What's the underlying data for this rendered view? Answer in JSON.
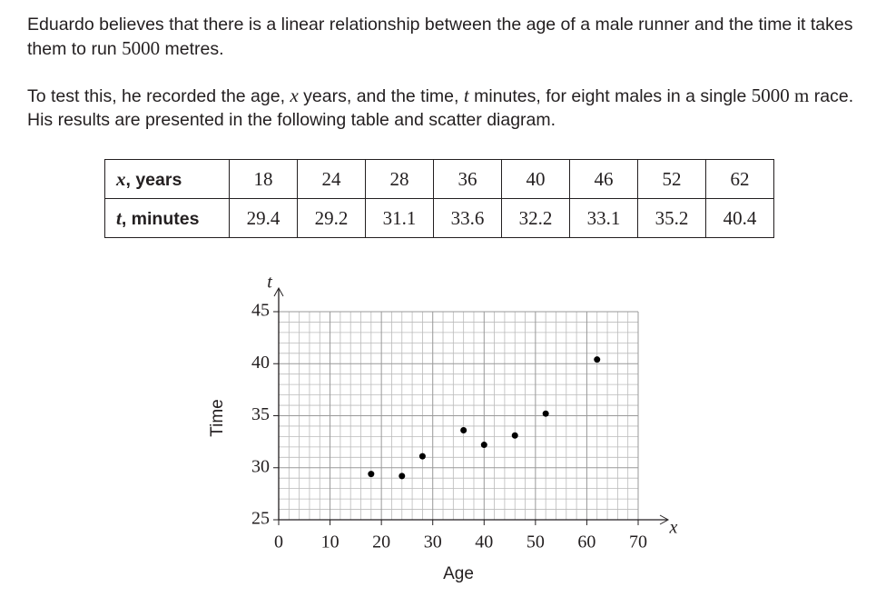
{
  "paragraphs": [
    [
      "Eduardo believes that there is a linear relationship between the age of a male runner and the time it takes them to run ",
      "5000",
      " metres."
    ],
    [
      "To test this, he recorded the age, ",
      "x",
      " years, and the time, ",
      "t",
      " minutes, for eight males in a single ",
      "5000 m",
      " race. His results are presented in the following table and scatter diagram."
    ]
  ],
  "table": {
    "rows": [
      {
        "label": [
          "x",
          ", years"
        ],
        "values": [
          18,
          24,
          28,
          36,
          40,
          46,
          52,
          62
        ]
      },
      {
        "label": [
          "t",
          ", minutes"
        ],
        "values": [
          29.4,
          29.2,
          31.1,
          33.6,
          32.2,
          33.1,
          35.2,
          40.4
        ]
      }
    ]
  },
  "chart_data": {
    "type": "scatter",
    "x_label": "Age",
    "y_label": "Time",
    "x_var": "x",
    "y_var": "t",
    "x": [
      18,
      24,
      28,
      36,
      40,
      46,
      52,
      62
    ],
    "values": [
      29.4,
      29.2,
      31.1,
      33.6,
      32.2,
      33.1,
      35.2,
      40.4
    ],
    "color": "#000000",
    "xlim": [
      0,
      70
    ],
    "xticks": [
      0,
      10,
      20,
      30,
      40,
      50,
      60,
      70
    ],
    "ylim": [
      25,
      45
    ],
    "yticks": [
      25,
      30,
      35,
      40,
      45
    ],
    "grid": true,
    "minor_grid": true
  }
}
